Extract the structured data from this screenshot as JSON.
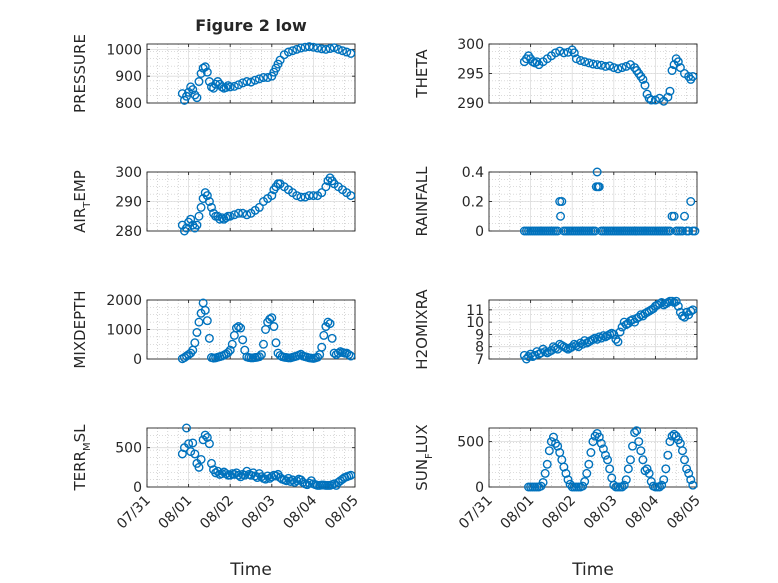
{
  "figure": {
    "title": "Figure 2 low",
    "x_tick_labels": [
      "07/31",
      "08/01",
      "08/02",
      "08/03",
      "08/04",
      "08/05"
    ],
    "colors": {
      "marker": "#0072bd",
      "axis": "#262626",
      "grid": "#b8b8b8"
    }
  },
  "chart_data": [
    {
      "type": "scatter",
      "name": "pressure",
      "ylabel_parts": [
        "PRESSURE"
      ],
      "xlabel": "",
      "xlim": [
        0,
        5
      ],
      "ylim": [
        800,
        1020
      ],
      "yticks": [
        800,
        900,
        1000
      ],
      "ytick_labels": [
        "800",
        "900",
        "1000"
      ],
      "grid": true,
      "marker": "circle",
      "x": [
        0.85,
        0.9,
        0.95,
        1.0,
        1.05,
        1.1,
        1.15,
        1.2,
        1.25,
        1.3,
        1.35,
        1.4,
        1.45,
        1.5,
        1.55,
        1.6,
        1.65,
        1.7,
        1.75,
        1.8,
        1.85,
        1.9,
        1.95,
        2.0,
        2.1,
        2.2,
        2.3,
        2.4,
        2.5,
        2.6,
        2.7,
        2.8,
        2.9,
        3.0,
        3.05,
        3.1,
        3.15,
        3.2,
        3.3,
        3.4,
        3.5,
        3.6,
        3.7,
        3.8,
        3.9,
        4.0,
        4.1,
        4.2,
        4.3,
        4.4,
        4.5,
        4.6,
        4.7,
        4.8,
        4.9
      ],
      "y": [
        835,
        810,
        825,
        840,
        860,
        850,
        830,
        820,
        880,
        910,
        930,
        935,
        915,
        880,
        860,
        855,
        870,
        880,
        870,
        860,
        855,
        858,
        865,
        860,
        862,
        868,
        875,
        880,
        878,
        885,
        890,
        895,
        895,
        900,
        915,
        930,
        945,
        960,
        980,
        990,
        995,
        1000,
        1005,
        1008,
        1010,
        1008,
        1005,
        1002,
        1000,
        1003,
        1006,
        1000,
        995,
        990,
        985
      ]
    },
    {
      "type": "scatter",
      "name": "theta",
      "ylabel_parts": [
        "THETA"
      ],
      "xlabel": "",
      "xlim": [
        0,
        5
      ],
      "ylim": [
        290,
        300
      ],
      "yticks": [
        290,
        295,
        300
      ],
      "ytick_labels": [
        "290",
        "295",
        "300"
      ],
      "grid": true,
      "marker": "circle",
      "x": [
        0.85,
        0.9,
        0.95,
        1.0,
        1.05,
        1.1,
        1.15,
        1.2,
        1.3,
        1.4,
        1.5,
        1.6,
        1.7,
        1.8,
        1.9,
        2.0,
        2.05,
        2.1,
        2.2,
        2.3,
        2.4,
        2.5,
        2.6,
        2.7,
        2.8,
        2.9,
        3.0,
        3.1,
        3.2,
        3.3,
        3.4,
        3.5,
        3.55,
        3.6,
        3.65,
        3.7,
        3.75,
        3.8,
        3.85,
        3.9,
        4.0,
        4.1,
        4.2,
        4.3,
        4.35,
        4.4,
        4.45,
        4.5,
        4.55,
        4.6,
        4.7,
        4.8,
        4.85,
        4.9
      ],
      "y": [
        297,
        297.5,
        298,
        297.5,
        297,
        296.8,
        297,
        296.5,
        297,
        297.5,
        298,
        298.5,
        298.8,
        298.5,
        298.6,
        299,
        298.5,
        297.5,
        297.2,
        297,
        296.8,
        296.6,
        296.5,
        296.4,
        296.2,
        296.3,
        296,
        295.8,
        296,
        296.2,
        296.5,
        296,
        295.5,
        295,
        294.5,
        294,
        293,
        291.5,
        290.8,
        290.5,
        290.5,
        290.8,
        290.3,
        291,
        292,
        295.5,
        296.5,
        297.5,
        297,
        296,
        295,
        294.5,
        294,
        294.5
      ]
    },
    {
      "type": "scatter",
      "name": "air_temp",
      "ylabel_parts": [
        "AIR",
        "T",
        "EMP"
      ],
      "xlabel": "",
      "xlim": [
        0,
        5
      ],
      "ylim": [
        280,
        300
      ],
      "yticks": [
        280,
        290,
        300
      ],
      "ytick_labels": [
        "280",
        "290",
        "300"
      ],
      "grid": true,
      "marker": "circle",
      "x": [
        0.85,
        0.9,
        0.95,
        1.0,
        1.05,
        1.1,
        1.15,
        1.2,
        1.25,
        1.3,
        1.35,
        1.4,
        1.45,
        1.5,
        1.55,
        1.6,
        1.65,
        1.7,
        1.75,
        1.8,
        1.85,
        1.9,
        1.95,
        2.0,
        2.1,
        2.2,
        2.3,
        2.4,
        2.5,
        2.6,
        2.7,
        2.8,
        2.9,
        3.0,
        3.05,
        3.1,
        3.15,
        3.2,
        3.3,
        3.4,
        3.5,
        3.6,
        3.7,
        3.8,
        3.9,
        4.0,
        4.1,
        4.2,
        4.3,
        4.35,
        4.4,
        4.45,
        4.5,
        4.6,
        4.7,
        4.8,
        4.9
      ],
      "y": [
        282,
        280,
        281,
        283,
        284,
        282,
        281,
        282,
        285,
        288,
        291,
        293,
        292,
        290,
        288,
        286,
        285,
        285,
        284,
        284.5,
        284,
        284.5,
        285,
        285,
        285.5,
        286,
        286,
        285.5,
        286,
        287,
        288,
        290,
        291,
        292,
        294,
        295,
        296,
        296,
        295,
        294,
        293,
        292,
        291.5,
        291.5,
        292,
        292,
        292,
        293,
        295,
        297,
        298,
        297,
        296,
        295,
        294,
        293,
        292
      ]
    },
    {
      "type": "scatter",
      "name": "rainfall",
      "ylabel_parts": [
        "RAINFALL"
      ],
      "xlabel": "",
      "xlim": [
        0,
        5
      ],
      "ylim": [
        0,
        0.4
      ],
      "yticks": [
        0,
        0.2,
        0.4
      ],
      "ytick_labels": [
        "0",
        "0.2",
        "0.4"
      ],
      "grid": true,
      "marker": "circle",
      "x": [
        0.85,
        0.9,
        0.95,
        1.0,
        1.05,
        1.1,
        1.15,
        1.2,
        1.25,
        1.3,
        1.35,
        1.4,
        1.45,
        1.5,
        1.55,
        1.6,
        1.65,
        1.7,
        1.72,
        1.75,
        1.8,
        1.85,
        1.9,
        1.95,
        2.0,
        2.05,
        2.1,
        2.15,
        2.2,
        2.25,
        2.3,
        2.35,
        2.4,
        2.45,
        2.5,
        2.55,
        2.58,
        2.6,
        2.62,
        2.65,
        2.7,
        2.75,
        2.8,
        2.85,
        2.9,
        2.95,
        3.0,
        3.05,
        3.1,
        3.15,
        3.2,
        3.25,
        3.3,
        3.35,
        3.4,
        3.45,
        3.5,
        3.55,
        3.6,
        3.65,
        3.7,
        3.75,
        3.8,
        3.85,
        3.9,
        3.95,
        4.0,
        4.05,
        4.1,
        4.15,
        4.2,
        4.25,
        4.3,
        4.35,
        4.4,
        4.45,
        4.5,
        4.55,
        4.6,
        4.65,
        4.7,
        4.75,
        4.8,
        4.85,
        4.9,
        4.95
      ],
      "y": [
        0,
        0,
        0,
        0,
        0,
        0,
        0,
        0,
        0,
        0,
        0,
        0,
        0,
        0,
        0,
        0,
        0,
        0.2,
        0.1,
        0.2,
        0,
        0,
        0,
        0,
        0,
        0,
        0,
        0,
        0,
        0,
        0,
        0,
        0,
        0,
        0,
        0,
        0.3,
        0.4,
        0.3,
        0.3,
        0,
        0,
        0,
        0,
        0,
        0,
        0,
        0,
        0,
        0,
        0,
        0,
        0,
        0,
        0,
        0,
        0,
        0,
        0,
        0,
        0,
        0,
        0,
        0,
        0,
        0,
        0,
        0,
        0,
        0,
        0,
        0,
        0,
        0,
        0.1,
        0.1,
        0,
        0,
        0,
        0,
        0.1,
        0,
        0,
        0.2,
        0,
        0
      ]
    },
    {
      "type": "scatter",
      "name": "mixdepth",
      "ylabel_parts": [
        "MIXDEPTH"
      ],
      "xlabel": "",
      "xlim": [
        0,
        5
      ],
      "ylim": [
        0,
        2000
      ],
      "yticks": [
        0,
        1000,
        2000
      ],
      "ytick_labels": [
        "0",
        "1000",
        "2000"
      ],
      "grid": true,
      "marker": "circle",
      "x": [
        0.85,
        0.9,
        0.95,
        1.0,
        1.05,
        1.1,
        1.15,
        1.2,
        1.25,
        1.3,
        1.35,
        1.4,
        1.45,
        1.5,
        1.55,
        1.6,
        1.65,
        1.7,
        1.75,
        1.8,
        1.85,
        1.9,
        1.95,
        2.0,
        2.05,
        2.1,
        2.15,
        2.2,
        2.25,
        2.3,
        2.35,
        2.4,
        2.45,
        2.5,
        2.55,
        2.6,
        2.65,
        2.7,
        2.75,
        2.8,
        2.85,
        2.9,
        2.95,
        3.0,
        3.05,
        3.1,
        3.15,
        3.2,
        3.25,
        3.3,
        3.35,
        3.4,
        3.45,
        3.5,
        3.55,
        3.6,
        3.65,
        3.7,
        3.75,
        3.8,
        3.85,
        3.9,
        3.95,
        4.0,
        4.05,
        4.1,
        4.15,
        4.2,
        4.25,
        4.3,
        4.35,
        4.4,
        4.45,
        4.5,
        4.55,
        4.6,
        4.65,
        4.7,
        4.75,
        4.8,
        4.85,
        4.9
      ],
      "y": [
        10,
        50,
        100,
        150,
        200,
        300,
        550,
        900,
        1250,
        1550,
        1900,
        1650,
        1300,
        700,
        50,
        30,
        40,
        60,
        80,
        100,
        130,
        170,
        220,
        300,
        500,
        800,
        1050,
        1100,
        1050,
        650,
        300,
        70,
        50,
        40,
        40,
        50,
        60,
        80,
        150,
        500,
        1000,
        1250,
        1350,
        1400,
        1100,
        550,
        200,
        120,
        80,
        60,
        50,
        40,
        40,
        60,
        80,
        100,
        130,
        160,
        100,
        80,
        60,
        40,
        30,
        20,
        40,
        60,
        150,
        400,
        800,
        1100,
        1250,
        1200,
        700,
        200,
        150,
        200,
        250,
        220,
        200,
        200,
        150,
        100
      ]
    },
    {
      "type": "scatter",
      "name": "h2omixra",
      "ylabel_parts": [
        "H2OMIXRA"
      ],
      "xlabel": "",
      "xlim": [
        0,
        5
      ],
      "ylim": [
        7,
        11.8
      ],
      "yticks": [
        7,
        8,
        9,
        10,
        11
      ],
      "ytick_labels": [
        "7",
        "8",
        "9",
        "10",
        "11"
      ],
      "grid": true,
      "marker": "circle",
      "x": [
        0.85,
        0.9,
        0.95,
        1.0,
        1.05,
        1.1,
        1.15,
        1.2,
        1.25,
        1.3,
        1.35,
        1.4,
        1.45,
        1.5,
        1.55,
        1.6,
        1.65,
        1.7,
        1.75,
        1.8,
        1.85,
        1.9,
        1.95,
        2.0,
        2.05,
        2.1,
        2.15,
        2.2,
        2.25,
        2.3,
        2.35,
        2.4,
        2.45,
        2.5,
        2.55,
        2.6,
        2.65,
        2.7,
        2.75,
        2.8,
        2.85,
        2.9,
        2.95,
        3.0,
        3.05,
        3.1,
        3.15,
        3.2,
        3.25,
        3.3,
        3.35,
        3.4,
        3.45,
        3.5,
        3.55,
        3.6,
        3.65,
        3.7,
        3.75,
        3.8,
        3.85,
        3.9,
        3.95,
        4.0,
        4.05,
        4.1,
        4.15,
        4.2,
        4.25,
        4.3,
        4.35,
        4.4,
        4.45,
        4.5,
        4.55,
        4.6,
        4.65,
        4.7,
        4.75,
        4.8,
        4.85,
        4.9
      ],
      "y": [
        7.3,
        7.0,
        7.2,
        7.4,
        7.2,
        7.3,
        7.6,
        7.4,
        7.5,
        7.8,
        7.6,
        7.5,
        7.6,
        7.7,
        8.0,
        7.9,
        7.8,
        8.2,
        8.1,
        8.0,
        7.9,
        7.8,
        7.9,
        8.0,
        8.2,
        8.1,
        8.0,
        8.3,
        8.2,
        8.5,
        8.3,
        8.4,
        8.5,
        8.6,
        8.7,
        8.6,
        8.8,
        8.7,
        8.9,
        8.8,
        8.9,
        9.0,
        9.1,
        9.0,
        8.6,
        8.4,
        9.2,
        9.6,
        10.0,
        9.8,
        9.9,
        10.1,
        10.2,
        10.0,
        10.3,
        10.4,
        10.6,
        10.5,
        10.7,
        10.8,
        10.9,
        11.0,
        11.1,
        11.3,
        11.4,
        11.5,
        11.6,
        11.4,
        11.5,
        11.6,
        11.7,
        11.7,
        11.6,
        11.7,
        11.3,
        10.8,
        10.5,
        10.4,
        10.8,
        10.6,
        10.9,
        11.0
      ]
    },
    {
      "type": "scatter",
      "name": "terr_msl",
      "ylabel_parts": [
        "TERR",
        "M",
        "SL"
      ],
      "xlabel": "Time",
      "xlim": [
        0,
        5
      ],
      "ylim": [
        0,
        750
      ],
      "yticks": [
        0,
        500
      ],
      "ytick_labels": [
        "0",
        "500"
      ],
      "grid": true,
      "marker": "circle",
      "x": [
        0.85,
        0.9,
        0.95,
        1.0,
        1.05,
        1.1,
        1.15,
        1.2,
        1.25,
        1.3,
        1.35,
        1.4,
        1.45,
        1.5,
        1.55,
        1.6,
        1.65,
        1.7,
        1.75,
        1.8,
        1.85,
        1.9,
        1.95,
        2.0,
        2.05,
        2.1,
        2.15,
        2.2,
        2.25,
        2.3,
        2.35,
        2.4,
        2.45,
        2.5,
        2.55,
        2.6,
        2.65,
        2.7,
        2.75,
        2.8,
        2.85,
        2.9,
        2.95,
        3.0,
        3.05,
        3.1,
        3.15,
        3.2,
        3.25,
        3.3,
        3.35,
        3.4,
        3.45,
        3.5,
        3.55,
        3.6,
        3.65,
        3.7,
        3.75,
        3.8,
        3.85,
        3.9,
        3.95,
        4.0,
        4.05,
        4.1,
        4.15,
        4.2,
        4.25,
        4.3,
        4.35,
        4.4,
        4.45,
        4.5,
        4.55,
        4.6,
        4.65,
        4.7,
        4.75,
        4.8,
        4.85,
        4.9
      ],
      "y": [
        420,
        500,
        750,
        550,
        450,
        560,
        420,
        300,
        250,
        350,
        600,
        660,
        630,
        550,
        300,
        220,
        180,
        200,
        160,
        170,
        190,
        170,
        150,
        150,
        170,
        160,
        180,
        150,
        130,
        160,
        150,
        200,
        160,
        150,
        180,
        140,
        120,
        170,
        130,
        110,
        100,
        140,
        110,
        130,
        150,
        140,
        160,
        120,
        100,
        90,
        80,
        110,
        70,
        90,
        60,
        80,
        100,
        90,
        60,
        40,
        30,
        50,
        80,
        40,
        30,
        20,
        20,
        25,
        25,
        20,
        20,
        20,
        30,
        40,
        20,
        60,
        80,
        100,
        120,
        130,
        140,
        150
      ]
    },
    {
      "type": "scatter",
      "name": "sun_flux",
      "ylabel_parts": [
        "SUN",
        "F",
        "LUX"
      ],
      "xlabel": "Time",
      "xlim": [
        0,
        5
      ],
      "ylim": [
        0,
        650
      ],
      "yticks": [
        0,
        500
      ],
      "ytick_labels": [
        "0",
        "500"
      ],
      "grid": true,
      "marker": "circle",
      "x": [
        0.95,
        1.0,
        1.05,
        1.1,
        1.15,
        1.2,
        1.25,
        1.3,
        1.35,
        1.4,
        1.45,
        1.5,
        1.55,
        1.6,
        1.65,
        1.7,
        1.75,
        1.8,
        1.85,
        1.9,
        1.95,
        2.0,
        2.05,
        2.1,
        2.15,
        2.2,
        2.25,
        2.3,
        2.35,
        2.4,
        2.45,
        2.5,
        2.55,
        2.6,
        2.65,
        2.7,
        2.75,
        2.8,
        2.85,
        2.9,
        2.95,
        3.0,
        3.05,
        3.1,
        3.15,
        3.2,
        3.25,
        3.3,
        3.35,
        3.4,
        3.45,
        3.5,
        3.55,
        3.6,
        3.65,
        3.7,
        3.75,
        3.8,
        3.85,
        3.9,
        3.95,
        4.0,
        4.05,
        4.1,
        4.15,
        4.2,
        4.25,
        4.3,
        4.35,
        4.4,
        4.45,
        4.5,
        4.55,
        4.6,
        4.65,
        4.7,
        4.75,
        4.8,
        4.85,
        4.9
      ],
      "y": [
        0,
        0,
        0,
        0,
        0,
        0,
        10,
        50,
        150,
        250,
        400,
        500,
        550,
        480,
        450,
        380,
        300,
        220,
        150,
        80,
        30,
        0,
        0,
        0,
        0,
        0,
        10,
        60,
        150,
        250,
        380,
        500,
        560,
        590,
        550,
        480,
        420,
        350,
        300,
        200,
        100,
        20,
        0,
        0,
        0,
        0,
        20,
        80,
        200,
        300,
        450,
        600,
        620,
        500,
        400,
        300,
        180,
        200,
        150,
        60,
        10,
        0,
        0,
        0,
        20,
        80,
        200,
        350,
        500,
        560,
        580,
        560,
        520,
        480,
        400,
        300,
        200,
        150,
        80,
        20
      ]
    }
  ]
}
